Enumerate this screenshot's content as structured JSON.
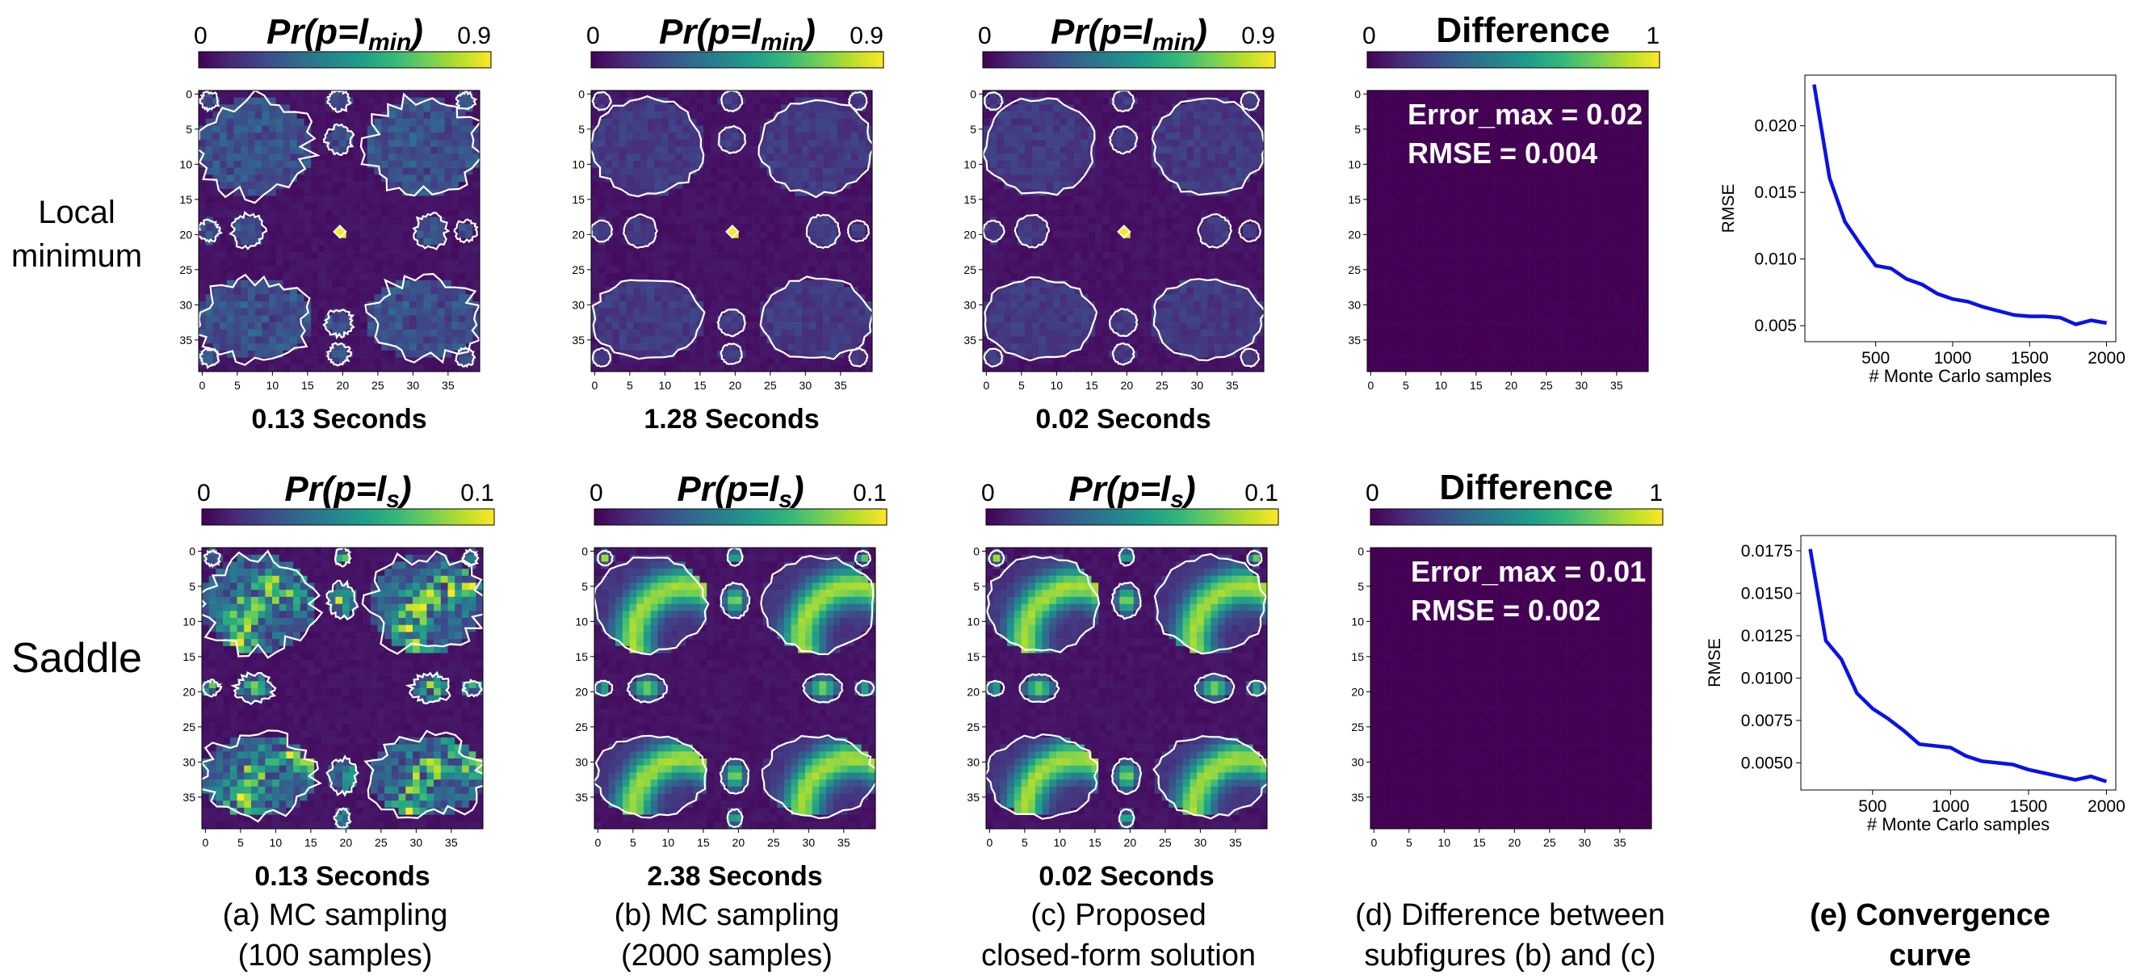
{
  "row_labels": [
    [
      "Local",
      "minimum"
    ],
    [
      "Saddle"
    ]
  ],
  "colormap": [
    "#440154",
    "#482878",
    "#3e4989",
    "#31688e",
    "#26828e",
    "#1f9e89",
    "#35b779",
    "#6ece58",
    "#b5de2b",
    "#fde725"
  ],
  "contour_color": "#ffffff",
  "panels": [
    {
      "row": 0,
      "col": 0,
      "kind": "heatmap",
      "title": "Pr(p=l",
      "sub": "min",
      "title_tail": ")",
      "cbar_min": "0",
      "cbar_max": "0.9",
      "caption": "0.13 Seconds"
    },
    {
      "row": 0,
      "col": 1,
      "kind": "heatmap",
      "title": "Pr(p=l",
      "sub": "min",
      "title_tail": ")",
      "cbar_min": "0",
      "cbar_max": "0.9",
      "caption": "1.28 Seconds"
    },
    {
      "row": 0,
      "col": 2,
      "kind": "heatmap",
      "title": "Pr(p=l",
      "sub": "min",
      "title_tail": ")",
      "cbar_min": "0",
      "cbar_max": "0.9",
      "caption": "0.02 Seconds"
    },
    {
      "row": 0,
      "col": 3,
      "kind": "difference",
      "title": "Difference",
      "cbar_min": "0",
      "cbar_max": "1",
      "annotations": [
        "Error_max = 0.02",
        "RMSE = 0.004"
      ]
    },
    {
      "row": 1,
      "col": 0,
      "kind": "heatmap",
      "title": "Pr(p=l",
      "sub": "s",
      "title_tail": ")",
      "cbar_min": "0",
      "cbar_max": "0.1",
      "caption": "0.13 Seconds"
    },
    {
      "row": 1,
      "col": 1,
      "kind": "heatmap",
      "title": "Pr(p=l",
      "sub": "s",
      "title_tail": ")",
      "cbar_min": "0",
      "cbar_max": "0.1",
      "caption": "2.38 Seconds"
    },
    {
      "row": 1,
      "col": 2,
      "kind": "heatmap",
      "title": "Pr(p=l",
      "sub": "s",
      "title_tail": ")",
      "cbar_min": "0",
      "cbar_max": "0.1",
      "caption": "0.02 Seconds"
    },
    {
      "row": 1,
      "col": 3,
      "kind": "difference",
      "title": "Difference",
      "cbar_min": "0",
      "cbar_max": "1",
      "annotations": [
        "Error_max = 0.01",
        "RMSE = 0.002"
      ]
    }
  ],
  "heatmap_axis": {
    "x_ticks": [
      "0",
      "5",
      "10",
      "15",
      "20",
      "25",
      "30",
      "35"
    ],
    "y_ticks": [
      "0",
      "5",
      "10",
      "15",
      "20",
      "25",
      "30",
      "35"
    ],
    "range": [
      0,
      39
    ]
  },
  "column_captions": [
    [
      "(a) MC sampling",
      "(100 samples)"
    ],
    [
      "(b) MC sampling",
      "(2000 samples)"
    ],
    [
      "(c) Proposed",
      "closed-form solution"
    ],
    [
      "(d) Difference between",
      "subfigures (b) and (c)"
    ],
    [
      "(e) Convergence",
      "curve"
    ]
  ],
  "chart_data": [
    {
      "type": "line",
      "xlabel": "# Monte Carlo samples",
      "ylabel": "RMSE",
      "xlim": [
        40,
        2060
      ],
      "ylim": [
        0.0038,
        0.0238
      ],
      "x_ticks": [
        500,
        1000,
        1500,
        2000
      ],
      "y_ticks": [
        0.005,
        0.01,
        0.015,
        0.02
      ],
      "y_tick_labels": [
        "0.005",
        "0.010",
        "0.015",
        "0.020"
      ],
      "x_tick_labels": [
        "500",
        "1000",
        "1500",
        "2000"
      ],
      "line_color": "#0a12e6",
      "series": [
        {
          "x": [
            100,
            200,
            300,
            400,
            500,
            600,
            700,
            800,
            900,
            1000,
            1100,
            1200,
            1300,
            1400,
            1500,
            1600,
            1700,
            1800,
            1900,
            2000
          ],
          "values": [
            0.0231,
            0.0161,
            0.0128,
            0.0111,
            0.0095,
            0.0093,
            0.0085,
            0.0081,
            0.0074,
            0.007,
            0.0068,
            0.0064,
            0.0061,
            0.0058,
            0.0057,
            0.0057,
            0.0056,
            0.0051,
            0.0054,
            0.0052
          ]
        }
      ]
    },
    {
      "type": "line",
      "xlabel": "# Monte Carlo samples",
      "ylabel": "RMSE",
      "xlim": [
        40,
        2060
      ],
      "ylim": [
        0.0034,
        0.0184
      ],
      "x_ticks": [
        500,
        1000,
        1500,
        2000
      ],
      "y_ticks": [
        0.005,
        0.0075,
        0.01,
        0.0125,
        0.015,
        0.0175
      ],
      "y_tick_labels": [
        "0.0050",
        "0.0075",
        "0.0100",
        "0.0125",
        "0.0150",
        "0.0175"
      ],
      "x_tick_labels": [
        "500",
        "1000",
        "1500",
        "2000"
      ],
      "line_color": "#0a12e6",
      "series": [
        {
          "x": [
            100,
            200,
            300,
            400,
            500,
            600,
            700,
            800,
            900,
            1000,
            1100,
            1200,
            1300,
            1400,
            1500,
            1600,
            1700,
            1800,
            1900,
            2000
          ],
          "values": [
            0.0176,
            0.0122,
            0.0111,
            0.0091,
            0.0082,
            0.0076,
            0.0069,
            0.0061,
            0.006,
            0.0059,
            0.0054,
            0.0051,
            0.005,
            0.0049,
            0.0046,
            0.0044,
            0.0042,
            0.004,
            0.0042,
            0.0039
          ]
        }
      ]
    }
  ]
}
